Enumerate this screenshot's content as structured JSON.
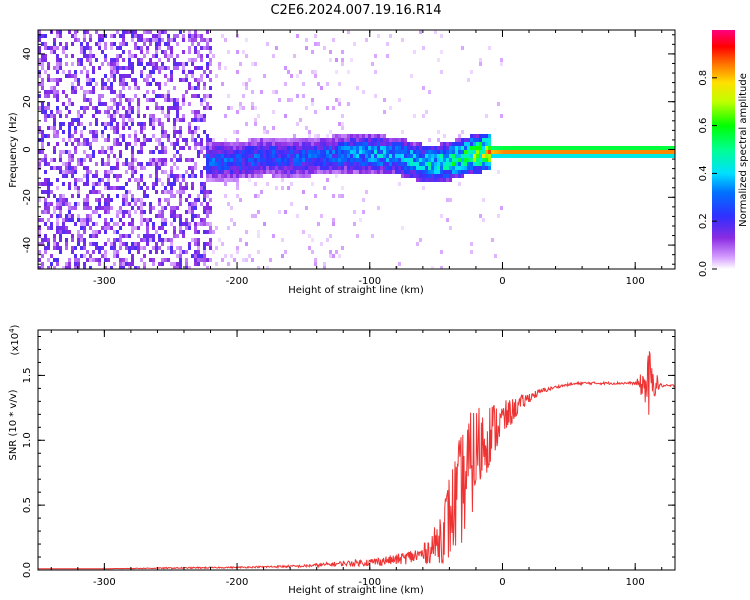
{
  "figure": {
    "title": "C2E6.2024.007.19.16.R14"
  },
  "colors": {
    "trace": "#ee3333",
    "axis": "#000000",
    "background": "#ffffff"
  },
  "chart_data": [
    {
      "type": "heatmap",
      "title": "C2E6.2024.007.19.16.R14",
      "xlabel": "Height of straight line (km)",
      "ylabel": "Frequency (Hz)",
      "xlim": [
        -350,
        130
      ],
      "ylim": [
        -50,
        50
      ],
      "x_ticks": [
        -300,
        -200,
        -100,
        0,
        100
      ],
      "y_ticks": [
        -40,
        -20,
        0,
        20,
        40
      ],
      "x_tick_labels": [
        "-300",
        "-200",
        "-100",
        "0",
        "100"
      ],
      "y_tick_labels": [
        "-40",
        "-20",
        "0",
        "20",
        "40"
      ],
      "colorbar": {
        "label": "Normalized spectral amplitude",
        "range": [
          0,
          1
        ],
        "ticks": [
          0.0,
          0.2,
          0.4,
          0.6,
          0.8
        ],
        "tick_labels": [
          "0.0",
          "0.2",
          "0.4",
          "0.6",
          "0.8"
        ],
        "colormap": "rainbow (white-violet-blue-cyan-green-yellow-red-magenta)"
      },
      "features": {
        "noise_region_x": [
          -350,
          -220
        ],
        "noise_amplitude": 0.2,
        "ridge": {
          "x": [
            -225,
            -200,
            -180,
            -160,
            -140,
            -120,
            -100,
            -80,
            -60,
            -50,
            -40,
            -30,
            -20,
            -10,
            0,
            50,
            100,
            130
          ],
          "freq": [
            -4,
            -4,
            -2,
            -3,
            -2,
            -1,
            -1,
            -2,
            -5,
            -5,
            -4,
            -2,
            -1,
            0,
            0,
            0,
            0,
            0
          ],
          "amplitude": [
            0.3,
            0.3,
            0.3,
            0.3,
            0.3,
            0.35,
            0.4,
            0.4,
            0.45,
            0.5,
            0.55,
            0.6,
            0.7,
            0.8,
            0.85,
            0.85,
            0.85,
            0.85
          ]
        }
      }
    },
    {
      "type": "line",
      "xlabel": "Height of straight line (km)",
      "ylabel": "SNR (10 * v/v)",
      "scale_label": "(x10",
      "scale_exponent": "4",
      "scale_suffix": ")",
      "xlim": [
        -350,
        130
      ],
      "ylim": [
        0,
        1.85
      ],
      "x_ticks": [
        -300,
        -200,
        -100,
        0,
        100
      ],
      "y_ticks": [
        0.0,
        0.5,
        1.0,
        1.5
      ],
      "x_tick_labels": [
        "-300",
        "-200",
        "-100",
        "0",
        "100"
      ],
      "y_tick_labels": [
        "0.0",
        "0.5",
        "1.0",
        "1.5"
      ],
      "series": [
        {
          "x": [
            -350,
            -300,
            -250,
            -200,
            -150,
            -120,
            -100,
            -80,
            -60,
            -50,
            -40,
            -30,
            -20,
            -10,
            0,
            10,
            20,
            30,
            40,
            50,
            60,
            80,
            100,
            108,
            110,
            112,
            120,
            130
          ],
          "y": [
            0.01,
            0.01,
            0.015,
            0.02,
            0.03,
            0.05,
            0.06,
            0.08,
            0.12,
            0.2,
            0.4,
            0.65,
            0.9,
            1.05,
            1.15,
            1.25,
            1.33,
            1.38,
            1.41,
            1.43,
            1.44,
            1.44,
            1.44,
            1.42,
            1.44,
            1.45,
            1.42,
            1.42
          ],
          "noise": [
            0.0,
            0.0,
            0.005,
            0.005,
            0.01,
            0.02,
            0.03,
            0.04,
            0.07,
            0.15,
            0.35,
            0.45,
            0.4,
            0.25,
            0.15,
            0.08,
            0.04,
            0.02,
            0.01,
            0.01,
            0.01,
            0.01,
            0.01,
            0.15,
            0.35,
            0.15,
            0.01,
            0.01
          ]
        }
      ]
    }
  ]
}
